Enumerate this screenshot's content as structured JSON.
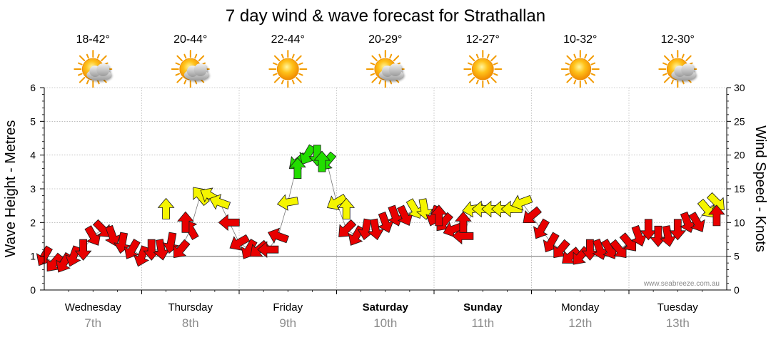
{
  "chart_data": {
    "type": "line",
    "title": "7 day wind & wave forecast for Strathallan",
    "ylabel": "Wave Height - Metres",
    "y2label": "Wind Speed - Knots",
    "ylim": [
      0,
      6
    ],
    "y2lim": [
      0,
      30
    ],
    "y_ticks": [
      0,
      1,
      2,
      3,
      4,
      5,
      6
    ],
    "y2_ticks": [
      0,
      5,
      10,
      15,
      20,
      25,
      30
    ],
    "watermark": "www.seabreeze.com.au",
    "days": [
      {
        "name": "Wednesday",
        "date": "7th",
        "bold": false,
        "temp": "18-42°",
        "weather": "partly-cloudy"
      },
      {
        "name": "Thursday",
        "date": "8th",
        "bold": false,
        "temp": "20-44°",
        "weather": "partly-cloudy"
      },
      {
        "name": "Friday",
        "date": "9th",
        "bold": false,
        "temp": "22-44°",
        "weather": "sunny"
      },
      {
        "name": "Saturday",
        "date": "10th",
        "bold": true,
        "temp": "20-29°",
        "weather": "partly-cloudy"
      },
      {
        "name": "Sunday",
        "date": "11th",
        "bold": true,
        "temp": "12-27°",
        "weather": "sunny"
      },
      {
        "name": "Monday",
        "date": "12th",
        "bold": false,
        "temp": "10-32°",
        "weather": "sunny"
      },
      {
        "name": "Tuesday",
        "date": "13th",
        "bold": false,
        "temp": "12-30°",
        "weather": "partly-cloudy"
      }
    ],
    "wind_colors": {
      "low": "#e80000",
      "mid": "#f5f500",
      "high": "#22dd00"
    },
    "series": [
      {
        "name": "Wind Speed (knots)",
        "axis": "y2",
        "x_unit": "day",
        "x": [
          0.0,
          0.1,
          0.2,
          0.3,
          0.4,
          0.5,
          0.6,
          0.7,
          0.8,
          0.9,
          1.0,
          1.1,
          1.2,
          1.3,
          1.4,
          1.5,
          1.6,
          1.7,
          1.8,
          1.9,
          2.0,
          2.1,
          2.2,
          2.3,
          2.4,
          2.5,
          2.6,
          2.7,
          2.8,
          2.9,
          3.0,
          3.1,
          3.2,
          3.3,
          3.4,
          3.5,
          3.6,
          3.7,
          3.8,
          3.9,
          4.0,
          4.1,
          4.2,
          4.3,
          4.4,
          4.5,
          4.6,
          4.7,
          4.8,
          4.9,
          5.0,
          5.1,
          5.2,
          5.3,
          5.4,
          5.5,
          5.6,
          5.7,
          5.8,
          5.9,
          6.0,
          6.1,
          6.2,
          6.3,
          6.4,
          6.5,
          6.6,
          6.7,
          6.8,
          6.9
        ],
        "values": [
          5,
          4,
          4,
          5,
          6,
          8,
          9,
          8,
          7,
          6,
          5,
          6,
          6,
          7,
          6,
          9,
          14,
          14,
          13,
          10,
          7,
          6,
          6,
          6,
          8,
          13,
          19,
          20,
          20,
          19,
          13,
          9,
          8,
          9,
          9,
          10,
          11,
          11,
          12,
          12,
          11,
          10,
          9,
          8,
          12,
          12,
          12,
          12,
          12,
          13,
          11,
          9,
          7,
          6,
          5,
          5,
          6,
          6,
          6,
          6,
          7,
          8,
          9,
          8,
          8,
          9,
          10,
          10,
          12,
          13
        ],
        "directions_deg": [
          120,
          130,
          120,
          110,
          90,
          60,
          45,
          70,
          100,
          120,
          110,
          90,
          80,
          100,
          130,
          240,
          230,
          210,
          200,
          180,
          150,
          120,
          140,
          180,
          200,
          170,
          140,
          120,
          90,
          130,
          150,
          135,
          120,
          100,
          80,
          70,
          70,
          65,
          60,
          80,
          110,
          130,
          160,
          180,
          170,
          180,
          180,
          180,
          180,
          160,
          140,
          120,
          120,
          130,
          140,
          130,
          90,
          70,
          60,
          50,
          50,
          70,
          90,
          90,
          80,
          90,
          70,
          60,
          50,
          45
        ],
        "gust_markers": [
          [
            1.25,
            12
          ],
          [
            1.45,
            10
          ],
          [
            2.6,
            18
          ],
          [
            2.85,
            19
          ],
          [
            3.1,
            12
          ],
          [
            4.05,
            11
          ],
          [
            4.3,
            10
          ],
          [
            6.9,
            11
          ]
        ]
      },
      {
        "name": "Wave Height (m)",
        "axis": "y",
        "x_unit": "day",
        "x": [
          0.0,
          0.5,
          1.0,
          1.5,
          2.0,
          2.5,
          3.0,
          3.5,
          4.0,
          4.5,
          5.0,
          5.5,
          6.0,
          6.5,
          7.0
        ],
        "values": [
          1.0,
          1.0,
          1.0,
          1.0,
          1.0,
          1.0,
          1.0,
          1.0,
          1.0,
          1.0,
          1.0,
          1.0,
          1.0,
          1.0,
          1.0
        ]
      }
    ]
  }
}
